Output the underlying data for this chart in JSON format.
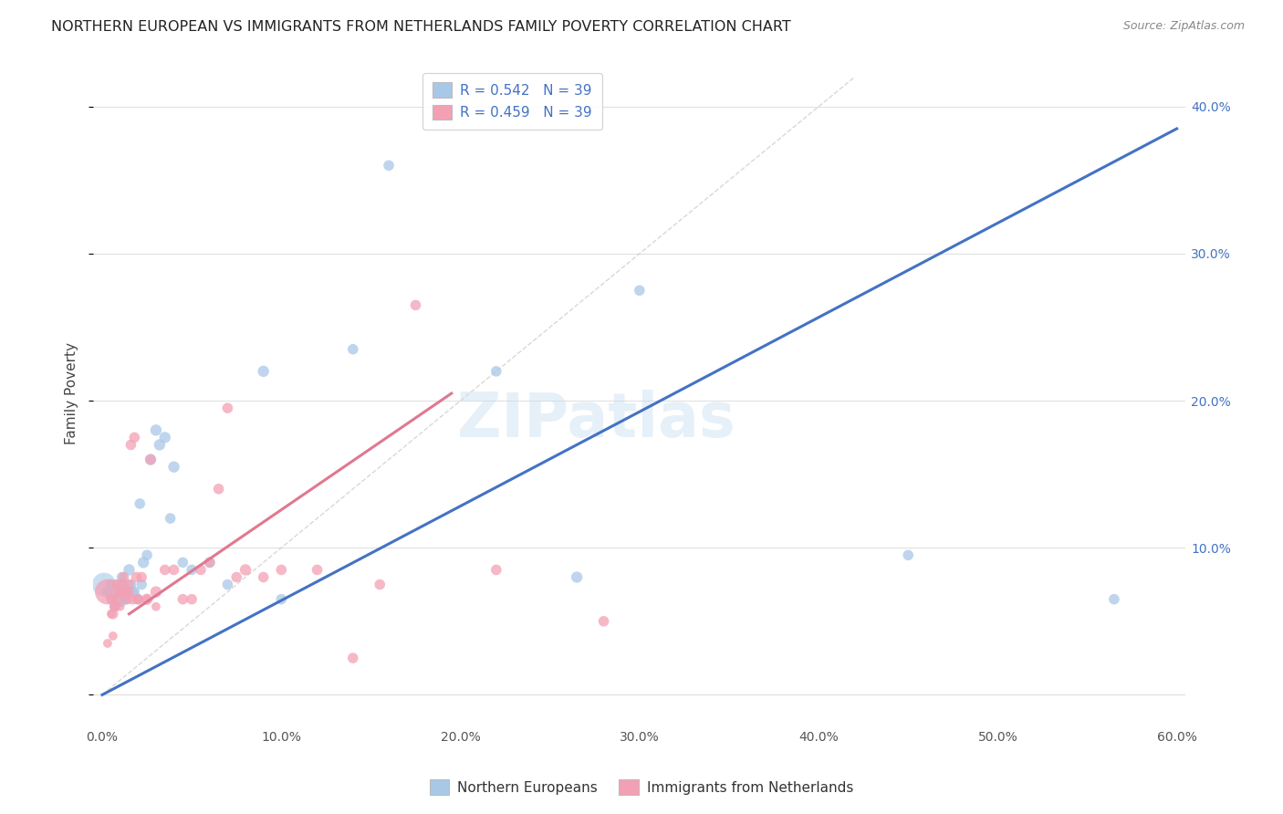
{
  "title": "NORTHERN EUROPEAN VS IMMIGRANTS FROM NETHERLANDS FAMILY POVERTY CORRELATION CHART",
  "source": "Source: ZipAtlas.com",
  "ylabel": "Family Poverty",
  "xlim": [
    -0.005,
    0.605
  ],
  "ylim": [
    -0.02,
    0.43
  ],
  "xticks": [
    0.0,
    0.1,
    0.2,
    0.3,
    0.4,
    0.5,
    0.6
  ],
  "xticklabels": [
    "0.0%",
    "10.0%",
    "20.0%",
    "30.0%",
    "40.0%",
    "50.0%",
    "60.0%"
  ],
  "yticks": [
    0.0,
    0.1,
    0.2,
    0.3,
    0.4
  ],
  "yticklabels": [
    "",
    "10.0%",
    "20.0%",
    "30.0%",
    "40.0%"
  ],
  "blue_R": 0.542,
  "blue_N": 39,
  "pink_R": 0.459,
  "pink_N": 39,
  "legend_label_blue": "Northern Europeans",
  "legend_label_pink": "Immigrants from Netherlands",
  "blue_color": "#a8c8e8",
  "pink_color": "#f4a0b4",
  "blue_line_color": "#4472c4",
  "pink_line_color": "#e07890",
  "diagonal_color": "#c8c8c8",
  "watermark": "ZIPatlas",
  "blue_line_x": [
    0.0,
    0.6
  ],
  "blue_line_y": [
    0.0,
    0.385
  ],
  "pink_line_x": [
    0.015,
    0.195
  ],
  "pink_line_y": [
    0.055,
    0.205
  ],
  "blue_scatter_x": [
    0.003,
    0.005,
    0.006,
    0.007,
    0.008,
    0.009,
    0.01,
    0.011,
    0.012,
    0.013,
    0.014,
    0.015,
    0.016,
    0.017,
    0.018,
    0.02,
    0.021,
    0.022,
    0.023,
    0.025,
    0.027,
    0.03,
    0.032,
    0.035,
    0.038,
    0.04,
    0.045,
    0.05,
    0.06,
    0.07,
    0.09,
    0.1,
    0.14,
    0.16,
    0.22,
    0.265,
    0.3,
    0.45,
    0.565
  ],
  "blue_scatter_y": [
    0.07,
    0.075,
    0.065,
    0.06,
    0.07,
    0.075,
    0.065,
    0.08,
    0.075,
    0.065,
    0.07,
    0.085,
    0.075,
    0.07,
    0.07,
    0.065,
    0.13,
    0.075,
    0.09,
    0.095,
    0.16,
    0.18,
    0.17,
    0.175,
    0.12,
    0.155,
    0.09,
    0.085,
    0.09,
    0.075,
    0.22,
    0.065,
    0.235,
    0.36,
    0.22,
    0.08,
    0.275,
    0.095,
    0.065
  ],
  "blue_scatter_size": [
    80,
    80,
    70,
    70,
    70,
    70,
    150,
    70,
    70,
    70,
    70,
    80,
    70,
    70,
    70,
    70,
    70,
    70,
    80,
    70,
    80,
    80,
    80,
    80,
    70,
    80,
    70,
    70,
    70,
    70,
    80,
    70,
    70,
    70,
    70,
    80,
    70,
    70,
    70
  ],
  "blue_scatter_large_idx": [
    0
  ],
  "pink_scatter_x": [
    0.003,
    0.005,
    0.006,
    0.007,
    0.008,
    0.009,
    0.01,
    0.011,
    0.012,
    0.013,
    0.014,
    0.015,
    0.016,
    0.017,
    0.018,
    0.019,
    0.02,
    0.022,
    0.025,
    0.027,
    0.03,
    0.035,
    0.04,
    0.045,
    0.05,
    0.055,
    0.06,
    0.065,
    0.07,
    0.075,
    0.08,
    0.09,
    0.1,
    0.12,
    0.14,
    0.155,
    0.175,
    0.22,
    0.28
  ],
  "pink_scatter_y": [
    0.07,
    0.065,
    0.055,
    0.06,
    0.075,
    0.065,
    0.07,
    0.075,
    0.08,
    0.07,
    0.065,
    0.075,
    0.17,
    0.065,
    0.175,
    0.08,
    0.065,
    0.08,
    0.065,
    0.16,
    0.07,
    0.085,
    0.085,
    0.065,
    0.065,
    0.085,
    0.09,
    0.14,
    0.195,
    0.08,
    0.085,
    0.08,
    0.085,
    0.085,
    0.025,
    0.075,
    0.265,
    0.085,
    0.05
  ],
  "pink_scatter_size": [
    400,
    70,
    70,
    70,
    70,
    70,
    80,
    70,
    70,
    70,
    70,
    70,
    70,
    70,
    70,
    70,
    70,
    70,
    80,
    70,
    80,
    70,
    70,
    70,
    70,
    70,
    70,
    70,
    70,
    70,
    80,
    70,
    70,
    70,
    70,
    70,
    70,
    70,
    70
  ],
  "pink_scatter_x2": [
    0.003,
    0.005,
    0.006,
    0.007,
    0.01,
    0.012,
    0.015,
    0.02,
    0.025,
    0.03
  ],
  "pink_scatter_y2": [
    0.035,
    0.055,
    0.04,
    0.06,
    0.06,
    0.07,
    0.07,
    0.065,
    0.065,
    0.06
  ]
}
